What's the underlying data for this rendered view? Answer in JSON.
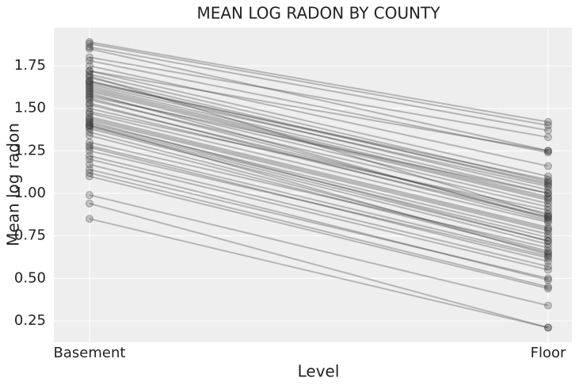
{
  "chart_data": {
    "type": "line",
    "title": "MEAN LOG RADON BY COUNTY",
    "x_label": "Level",
    "y_label": "Mean log radon",
    "categories": [
      "Basement",
      "Floor"
    ],
    "color": "#333333",
    "grid": true,
    "ylim": [
      0.124,
      1.974
    ],
    "yticks": [
      0.25,
      {
        "value": 0.5,
        "label": "0.50"
      },
      0.75,
      {
        "value": 1,
        "label": "1.00"
      },
      1.25,
      {
        "value": 1.5,
        "label": "1.50"
      },
      1.75
    ],
    "series": [
      {
        "values": [
          1.89,
          1.42
        ]
      },
      {
        "values": [
          1.88,
          1.4
        ]
      },
      {
        "values": [
          1.86,
          1.37
        ]
      },
      {
        "values": [
          1.85,
          1.25
        ]
      },
      {
        "values": [
          1.8,
          1.33
        ]
      },
      {
        "values": [
          1.78,
          1.24
        ]
      },
      {
        "values": [
          1.75,
          1.16
        ]
      },
      {
        "values": [
          1.72,
          1.1
        ]
      },
      {
        "values": [
          1.7,
          1.07
        ]
      },
      {
        "values": [
          1.68,
          1.05
        ]
      },
      {
        "values": [
          1.66,
          1.02
        ]
      },
      {
        "values": [
          1.65,
          1.08
        ]
      },
      {
        "values": [
          1.63,
          1.0
        ]
      },
      {
        "values": [
          1.62,
          0.98
        ]
      },
      {
        "values": [
          1.6,
          0.96
        ]
      },
      {
        "values": [
          1.58,
          0.94
        ]
      },
      {
        "values": [
          1.56,
          0.86
        ]
      },
      {
        "values": [
          1.55,
          0.92
        ]
      },
      {
        "values": [
          1.52,
          0.88
        ]
      },
      {
        "values": [
          1.5,
          0.86
        ]
      },
      {
        "values": [
          1.47,
          0.83
        ]
      },
      {
        "values": [
          1.45,
          0.8
        ]
      },
      {
        "values": [
          1.43,
          0.78
        ]
      },
      {
        "values": [
          1.41,
          0.76
        ]
      },
      {
        "values": [
          1.4,
          0.74
        ]
      },
      {
        "values": [
          1.39,
          0.72
        ]
      },
      {
        "values": [
          1.38,
          0.7
        ]
      },
      {
        "values": [
          1.36,
          0.66
        ]
      },
      {
        "values": [
          1.34,
          0.65
        ]
      },
      {
        "values": [
          1.28,
          0.63
        ]
      },
      {
        "values": [
          1.27,
          0.6
        ]
      },
      {
        "values": [
          1.22,
          0.57
        ]
      },
      {
        "values": [
          1.2,
          0.55
        ]
      },
      {
        "values": [
          1.14,
          0.5
        ]
      },
      {
        "values": [
          1.12,
          0.45
        ]
      },
      {
        "values": [
          1.1,
          0.44
        ]
      },
      {
        "values": [
          0.99,
          0.34
        ]
      },
      {
        "values": [
          0.94,
          0.21
        ]
      },
      {
        "values": [
          0.85,
          0.21
        ]
      },
      {
        "values": [
          1.66,
          1.06
        ]
      },
      {
        "values": [
          1.64,
          1.04
        ]
      },
      {
        "values": [
          1.61,
          0.97
        ]
      },
      {
        "values": [
          1.57,
          1.0
        ]
      },
      {
        "values": [
          1.53,
          0.84
        ]
      },
      {
        "values": [
          1.48,
          0.9
        ]
      },
      {
        "values": [
          1.44,
          0.79
        ]
      },
      {
        "values": [
          1.42,
          0.72
        ]
      },
      {
        "values": [
          1.3,
          0.68
        ]
      },
      {
        "values": [
          1.25,
          0.62
        ]
      },
      {
        "values": [
          1.17,
          0.49
        ]
      },
      {
        "values": [
          1.72,
          1.25
        ]
      },
      {
        "values": [
          1.69,
          0.87
        ]
      },
      {
        "values": [
          1.59,
          0.85
        ]
      },
      {
        "values": [
          1.4,
          0.64
        ]
      }
    ]
  }
}
